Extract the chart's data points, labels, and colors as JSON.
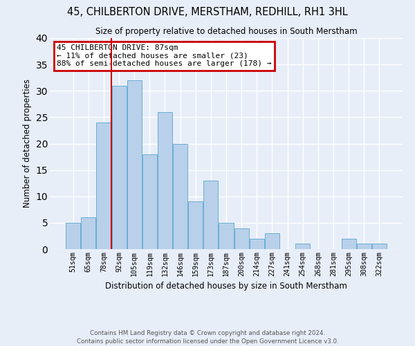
{
  "title": "45, CHILBERTON DRIVE, MERSTHAM, REDHILL, RH1 3HL",
  "subtitle": "Size of property relative to detached houses in South Merstham",
  "xlabel": "Distribution of detached houses by size in South Merstham",
  "ylabel": "Number of detached properties",
  "footer_line1": "Contains HM Land Registry data © Crown copyright and database right 2024.",
  "footer_line2": "Contains public sector information licensed under the Open Government Licence v3.0.",
  "bar_labels": [
    "51sqm",
    "65sqm",
    "78sqm",
    "92sqm",
    "105sqm",
    "119sqm",
    "132sqm",
    "146sqm",
    "159sqm",
    "173sqm",
    "187sqm",
    "200sqm",
    "214sqm",
    "227sqm",
    "241sqm",
    "254sqm",
    "268sqm",
    "281sqm",
    "295sqm",
    "308sqm",
    "322sqm"
  ],
  "bar_values": [
    5,
    6,
    24,
    31,
    32,
    18,
    26,
    20,
    9,
    13,
    5,
    4,
    2,
    3,
    0,
    1,
    0,
    0,
    2,
    1,
    1
  ],
  "bar_color": "#b8d0ea",
  "bar_edge_color": "#6aaed6",
  "annotation_title": "45 CHILBERTON DRIVE: 87sqm",
  "annotation_line2": "← 11% of detached houses are smaller (23)",
  "annotation_line3": "88% of semi-detached houses are larger (178) →",
  "vline_x_index": 2,
  "annotation_box_color": "#cc0000",
  "ylim": [
    0,
    40
  ],
  "yticks": [
    0,
    5,
    10,
    15,
    20,
    25,
    30,
    35,
    40
  ],
  "background_color": "#e8eef8",
  "plot_background": "#e8eef8",
  "grid_color": "#ffffff"
}
